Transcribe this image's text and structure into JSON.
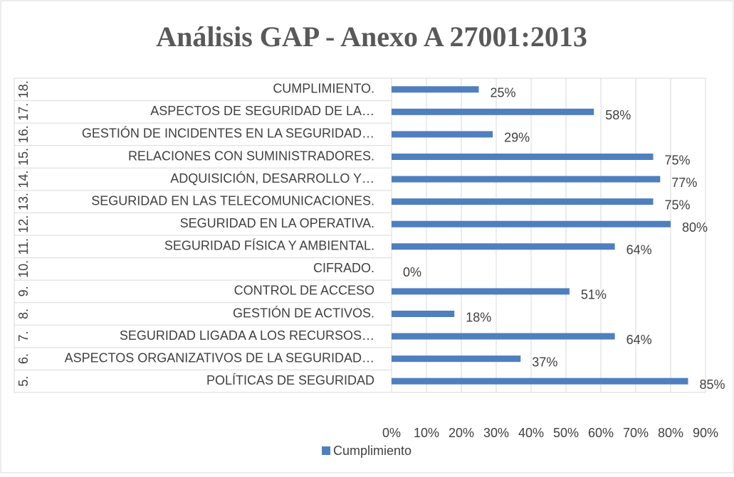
{
  "chart_data": {
    "type": "bar",
    "orientation": "horizontal",
    "title": "Análisis GAP - Anexo A 27001:2013",
    "category_groups": [
      "5.",
      "6.",
      "7.",
      "8.",
      "9.",
      "10.",
      "11.",
      "12.",
      "13.",
      "14.",
      "15.",
      "16.",
      "17.",
      "18."
    ],
    "categories": [
      "POLÍTICAS DE SEGURIDAD",
      "ASPECTOS ORGANIZATIVOS DE LA SEGURIDAD…",
      "SEGURIDAD LIGADA A LOS RECURSOS…",
      "GESTIÓN DE ACTIVOS.",
      "CONTROL DE ACCESO",
      "CIFRADO.",
      "SEGURIDAD FÍSICA Y AMBIENTAL.",
      "SEGURIDAD EN LA OPERATIVA.",
      "SEGURIDAD EN LAS TELECOMUNICACIONES.",
      "ADQUISICIÓN, DESARROLLO Y…",
      "RELACIONES CON SUMINISTRADORES.",
      "GESTIÓN DE INCIDENTES EN LA SEGURIDAD…",
      "ASPECTOS DE SEGURIDAD DE LA…",
      "CUMPLIMIENTO."
    ],
    "series": [
      {
        "name": "Cumplimiento",
        "color": "#4f7fbf",
        "values": [
          85,
          37,
          64,
          18,
          51,
          0,
          64,
          80,
          75,
          77,
          75,
          29,
          58,
          25
        ],
        "value_labels": [
          "85%",
          "37%",
          "64%",
          "18%",
          "51%",
          "0%",
          "64%",
          "80%",
          "75%",
          "77%",
          "75%",
          "29%",
          "58%",
          "25%"
        ]
      }
    ],
    "xlim": [
      0,
      90
    ],
    "xticks": [
      {
        "value": 0,
        "label": "0%"
      },
      {
        "value": 10,
        "label": "10%"
      },
      {
        "value": 20,
        "label": "20%"
      },
      {
        "value": 30,
        "label": "30%"
      },
      {
        "value": 40,
        "label": "40%"
      },
      {
        "value": 50,
        "label": "50%"
      },
      {
        "value": 60,
        "label": "60%"
      },
      {
        "value": 70,
        "label": "70%"
      },
      {
        "value": 80,
        "label": "80%"
      },
      {
        "value": 90,
        "label": "90%"
      }
    ],
    "grid": true,
    "legend": "bottom"
  }
}
